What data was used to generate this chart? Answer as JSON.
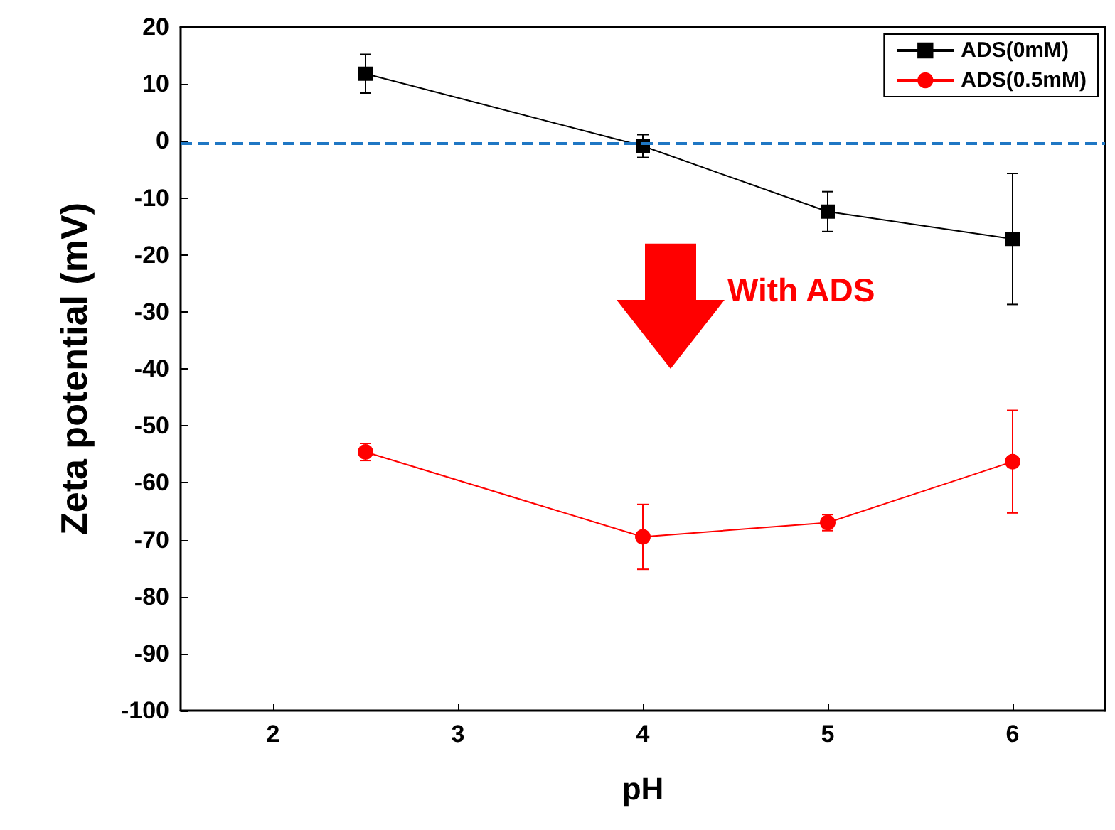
{
  "chart_data": {
    "type": "line",
    "xlabel": "pH",
    "ylabel": "Zeta potential (mV)",
    "x": [
      2.5,
      4,
      5,
      6
    ],
    "series": [
      {
        "name": "ADS(0mM)",
        "color": "#000000",
        "marker": "square",
        "values": [
          11.8,
          -0.9,
          -12.4,
          -17.2
        ],
        "errors": [
          3.4,
          2,
          3.5,
          11.5
        ]
      },
      {
        "name": "ADS(0.5mM)",
        "color": "#ff0000",
        "marker": "circle",
        "values": [
          -54.6,
          -69.5,
          -67.0,
          -56.3
        ],
        "errors": [
          1.5,
          5.7,
          1.4,
          9
        ]
      }
    ],
    "xlim": [
      1.5,
      6.5
    ],
    "xticks": [
      2,
      3,
      4,
      5,
      6
    ],
    "ylim": [
      -100,
      20
    ],
    "yticks": [
      -100,
      -90,
      -80,
      -70,
      -60,
      -50,
      -40,
      -30,
      -20,
      -10,
      0,
      10,
      20
    ],
    "ref_lines": [
      {
        "axis": "y",
        "value": -0.5,
        "color": "#1f77c4",
        "line_style": "dashed"
      }
    ],
    "annotations": [
      "With ADS"
    ],
    "legend": "top right",
    "grid": false,
    "line_style": "solid"
  }
}
